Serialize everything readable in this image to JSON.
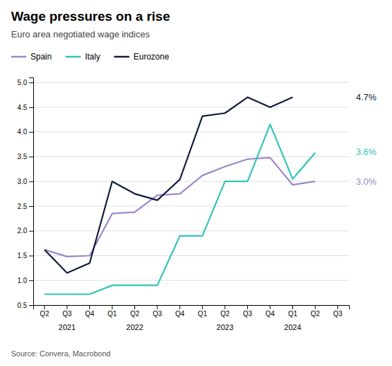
{
  "chart_data": {
    "type": "line",
    "title": "Wage pressures on a rise",
    "subtitle": "Euro area negotiated wage indices",
    "source": "Source: Convera, Macrobond",
    "categories": [
      "Q2",
      "Q3",
      "Q4",
      "Q1",
      "Q2",
      "Q3",
      "Q4",
      "Q1",
      "Q2",
      "Q3",
      "Q4",
      "Q1",
      "Q2",
      "Q3"
    ],
    "annotations": [
      {
        "text": "2021",
        "x": 1
      },
      {
        "text": "2022",
        "x": 4
      },
      {
        "text": "2023",
        "x": 8
      },
      {
        "text": "2024",
        "x": 11
      }
    ],
    "series": [
      {
        "name": "Spain",
        "color": "#9b87c9",
        "values": [
          1.62,
          1.48,
          1.5,
          2.35,
          2.38,
          2.72,
          2.75,
          3.12,
          3.3,
          3.45,
          3.48,
          2.93,
          3.0,
          null
        ],
        "end_label": "3.0%",
        "end_label_value": 3.0
      },
      {
        "name": "Italy",
        "color": "#2ec4b6",
        "values": [
          0.72,
          0.72,
          0.72,
          0.9,
          0.9,
          0.9,
          1.9,
          1.9,
          3.0,
          3.0,
          4.15,
          3.05,
          3.58,
          null
        ],
        "end_label": "3.6%",
        "end_label_value": 3.6
      },
      {
        "name": "Eurozone",
        "color": "#0d1b3e",
        "values": [
          1.62,
          1.15,
          1.35,
          3.0,
          2.75,
          2.62,
          3.04,
          4.32,
          4.38,
          4.7,
          4.5,
          4.7,
          null,
          null
        ],
        "end_label": "4.7%",
        "end_label_value": 4.7
      }
    ],
    "ylim": [
      0.5,
      5.1
    ],
    "yticks": [
      0.5,
      {
        "value": 1.0,
        "label": "1.0"
      },
      1.5,
      {
        "value": 2.0,
        "label": "2.0"
      },
      2.5,
      {
        "value": 3.0,
        "label": "3.0"
      },
      3.5,
      {
        "value": 4.0,
        "label": "4.0"
      },
      4.5,
      {
        "value": 5.0,
        "label": "5.0"
      }
    ],
    "grid": true,
    "legend": "top"
  }
}
